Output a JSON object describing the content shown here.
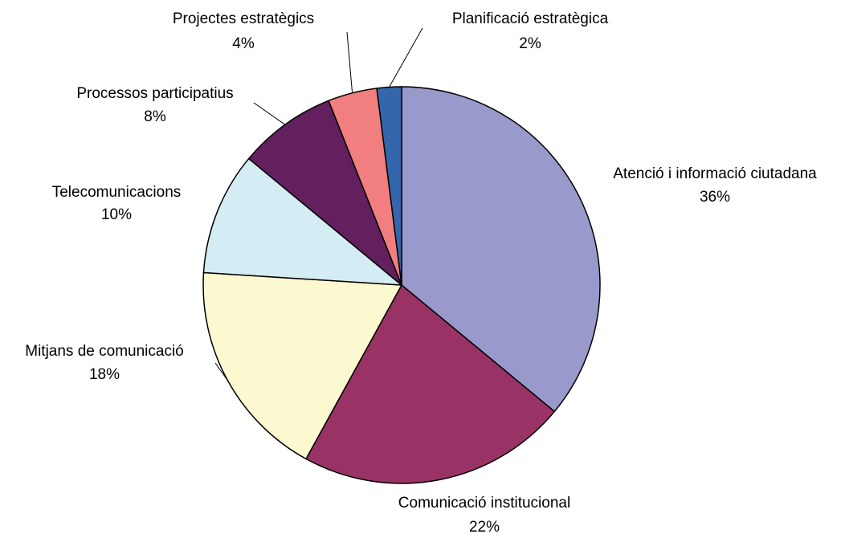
{
  "chart_data": {
    "type": "pie",
    "categories": [
      "Atenció i informació ciutadana",
      "Comunicació institucional",
      "Mitjans de comunicació",
      "Telecomunicacions",
      "Processos participatius",
      "Projectes estratègics",
      "Planificació estratègica"
    ],
    "values": [
      36,
      22,
      18,
      10,
      8,
      4,
      2
    ],
    "value_labels": [
      "36%",
      "22%",
      "18%",
      "10%",
      "8%",
      "4%",
      "2%"
    ],
    "colors": [
      "#9999cc",
      "#993366",
      "#fcf8cf",
      "#d4ecf3",
      "#631f5e",
      "#f17f7f",
      "#3366aa"
    ]
  }
}
